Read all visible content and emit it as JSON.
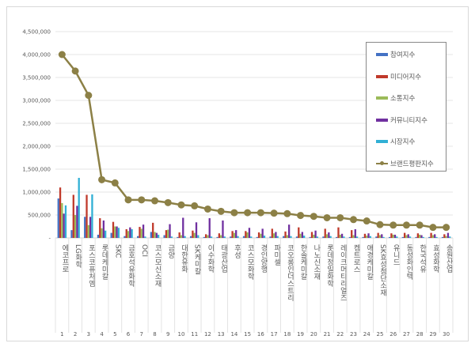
{
  "chart_data": {
    "type": "bar",
    "ylim": [
      0,
      4500000
    ],
    "yticks": [
      "-",
      "500,000",
      "1,000,000",
      "1,500,000",
      "2,000,000",
      "2,500,000",
      "3,000,000",
      "3,500,000",
      "4,000,000",
      "4,500,000"
    ],
    "grid": true,
    "legend_position": "right",
    "categories": [
      "에코프로",
      "LG화학",
      "포스코퓨처엠",
      "롯데케미칼",
      "SKC",
      "금호석유화학",
      "OCI",
      "코스모신소재",
      "금양",
      "대한유화",
      "SK케미칼",
      "이수화학",
      "태광산업",
      "후성",
      "코스모화학",
      "경인양행",
      "파미셀",
      "코오롱인더스트리",
      "한솔케미칼",
      "나노신소재",
      "롯데정밀화학",
      "레이크머티리얼즈",
      "켐트로스",
      "애경케미칼",
      "SK효성첨단소재",
      "유니드",
      "동성화인텍",
      "한국석유",
      "효성화학",
      "송원산업"
    ],
    "ranks": [
      "1",
      "2",
      "3",
      "4",
      "5",
      "6",
      "7",
      "8",
      "9",
      "10",
      "11",
      "12",
      "13",
      "14",
      "15",
      "16",
      "17",
      "18",
      "19",
      "20",
      "21",
      "22",
      "23",
      "24",
      "25",
      "26",
      "27",
      "28",
      "29",
      "30"
    ],
    "series": [
      {
        "name": "참여지수",
        "color": "#4472c4",
        "kind": "bar",
        "values": [
          860000,
          170000,
          460000,
          70000,
          110000,
          40000,
          40000,
          130000,
          60000,
          20000,
          40000,
          20000,
          20000,
          30000,
          40000,
          20000,
          30000,
          40000,
          30000,
          20000,
          30000,
          20000,
          20000,
          20000,
          30000,
          20000,
          20000,
          20000,
          20000,
          20000
        ]
      },
      {
        "name": "미디어지수",
        "color": "#c0392b",
        "kind": "bar",
        "values": [
          1100000,
          940000,
          940000,
          430000,
          350000,
          190000,
          240000,
          330000,
          170000,
          120000,
          160000,
          80000,
          100000,
          150000,
          150000,
          120000,
          200000,
          140000,
          230000,
          130000,
          200000,
          230000,
          170000,
          90000,
          110000,
          100000,
          110000,
          100000,
          110000,
          80000
        ]
      },
      {
        "name": "소통지수",
        "color": "#9bbb59",
        "kind": "bar",
        "values": [
          760000,
          500000,
          280000,
          210000,
          250000,
          150000,
          200000,
          130000,
          180000,
          60000,
          110000,
          60000,
          60000,
          110000,
          120000,
          90000,
          100000,
          60000,
          90000,
          70000,
          80000,
          70000,
          60000,
          50000,
          60000,
          70000,
          60000,
          70000,
          60000,
          40000
        ]
      },
      {
        "name": "커뮤니티지수",
        "color": "#7030a0",
        "kind": "bar",
        "values": [
          530000,
          700000,
          460000,
          380000,
          250000,
          230000,
          290000,
          110000,
          300000,
          440000,
          340000,
          430000,
          380000,
          170000,
          220000,
          200000,
          130000,
          290000,
          130000,
          160000,
          120000,
          90000,
          190000,
          100000,
          80000,
          70000,
          80000,
          60000,
          80000,
          110000
        ]
      },
      {
        "name": "시장지수",
        "color": "#31b0d5",
        "kind": "bar",
        "values": [
          710000,
          1310000,
          950000,
          160000,
          220000,
          190000,
          30000,
          70000,
          30000,
          40000,
          60000,
          30000,
          30000,
          40000,
          30000,
          50000,
          40000,
          40000,
          50000,
          30000,
          40000,
          30000,
          30000,
          40000,
          20000,
          30000,
          30000,
          20000,
          20000,
          30000
        ]
      },
      {
        "name": "브랜드평판지수",
        "color": "#8c8046",
        "kind": "line",
        "values": [
          4000000,
          3640000,
          3110000,
          1270000,
          1200000,
          830000,
          830000,
          810000,
          770000,
          720000,
          700000,
          630000,
          580000,
          550000,
          550000,
          550000,
          540000,
          530000,
          490000,
          470000,
          440000,
          440000,
          400000,
          370000,
          290000,
          280000,
          280000,
          280000,
          230000,
          230000
        ]
      }
    ]
  }
}
